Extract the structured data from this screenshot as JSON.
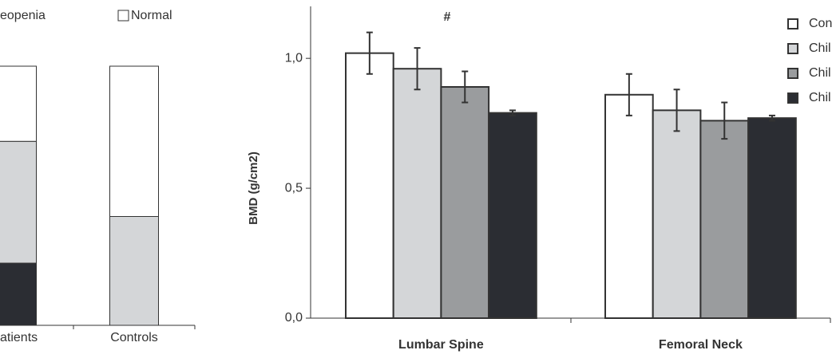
{
  "chart_data": [
    {
      "type": "stacked_bar",
      "categories": [
        "atients",
        "Controls"
      ],
      "series": [
        {
          "color": "#2b2d33",
          "values": [
            24,
            0
          ]
        },
        {
          "name": "eopenia",
          "color": "#d4d6d8",
          "values": [
            47,
            42
          ]
        },
        {
          "name": "Normal",
          "color": "#ffffff",
          "values": [
            29,
            58
          ]
        }
      ]
    },
    {
      "type": "bar",
      "y_label": "BMD (g/cm2)",
      "annotation": "#",
      "categories": [
        "Lumbar Spine",
        "Femoral Neck"
      ],
      "ylim": [
        0,
        1.2
      ],
      "yticks": [
        {
          "value": 0,
          "label": "0,0"
        },
        {
          "value": 0.5,
          "label": "0,5"
        },
        {
          "value": 1,
          "label": "1,0"
        }
      ],
      "series": [
        {
          "name": "Con",
          "color": "#ffffff",
          "values": [
            1.02,
            0.86
          ],
          "errors": [
            0.08,
            0.08
          ]
        },
        {
          "name": "Chil",
          "color": "#d4d6d8",
          "values": [
            0.96,
            0.8
          ],
          "errors": [
            0.08,
            0.08
          ]
        },
        {
          "name": "Chil",
          "color": "#9a9c9e",
          "values": [
            0.89,
            0.76
          ],
          "errors": [
            0.06,
            0.07
          ]
        },
        {
          "name": "Chil",
          "color": "#2b2d33",
          "values": [
            0.79,
            0.77
          ],
          "errors": [
            0.01,
            0.01
          ]
        }
      ]
    }
  ]
}
